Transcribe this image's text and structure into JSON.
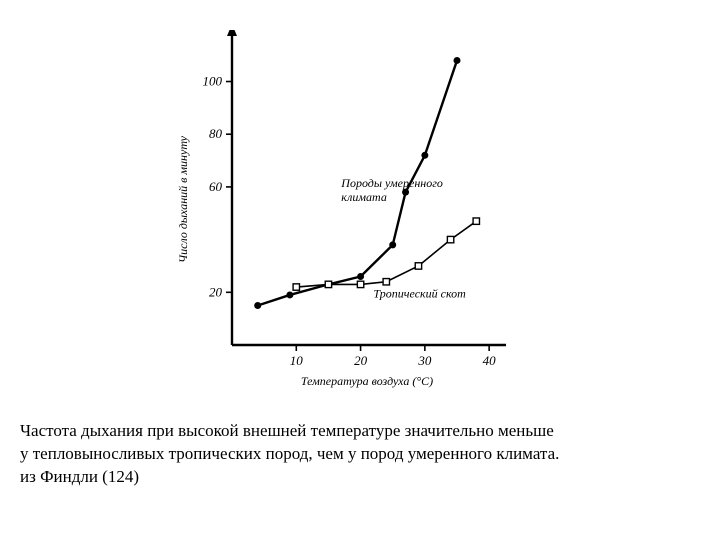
{
  "chart": {
    "type": "line",
    "background_color": "#ffffff",
    "stroke_color": "#000000",
    "axis_stroke_width": 2.4,
    "y_arrow": true,
    "xlim": [
      0,
      42
    ],
    "ylim": [
      0,
      115
    ],
    "xticks": [
      10,
      20,
      30,
      40
    ],
    "yticks": [
      20,
      60,
      80,
      100
    ],
    "ytick_labels": [
      "20",
      "60",
      "80",
      "100"
    ],
    "x_axis_label": "Температура воздуха (°С)",
    "y_axis_label": "Число дыханий в минуту",
    "axis_label_fontsize": 12,
    "tick_label_fontsize": 13,
    "series": [
      {
        "name": "temperate",
        "label": "Породы умеренного климата",
        "label_pos_x": 17,
        "label_pos_y": 60,
        "marker": "filled-circle",
        "marker_size": 3.5,
        "line_width": 2.4,
        "color": "#000000",
        "x": [
          4,
          9,
          15,
          20,
          25,
          27,
          30,
          35
        ],
        "y": [
          15,
          19,
          23,
          26,
          38,
          58,
          72,
          108
        ]
      },
      {
        "name": "tropical",
        "label": "Тропический скот",
        "label_pos_x": 22,
        "label_pos_y": 18,
        "marker": "open-square",
        "marker_size": 3.2,
        "line_width": 1.6,
        "color": "#000000",
        "x": [
          10,
          15,
          20,
          24,
          29,
          34,
          38
        ],
        "y": [
          22,
          23,
          23,
          24,
          30,
          40,
          47
        ]
      }
    ]
  },
  "caption": {
    "line1": "Частота дыхания при высокой внешней температуре значительно меньше",
    "line2": "у тепловыносливых тропических пород, чем у пород умеренного климата.",
    "line3": "из  Финдли (124)",
    "fontsize": 17
  }
}
